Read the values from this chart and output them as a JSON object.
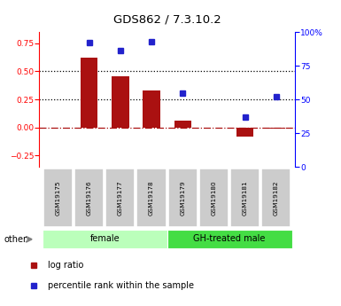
{
  "title": "GDS862 / 7.3.10.2",
  "samples": [
    "GSM19175",
    "GSM19176",
    "GSM19177",
    "GSM19178",
    "GSM19179",
    "GSM19180",
    "GSM19181",
    "GSM19182"
  ],
  "log_ratio": [
    0.0,
    0.62,
    0.46,
    0.33,
    0.06,
    0.0,
    -0.08,
    -0.01
  ],
  "percentile_rank": [
    null,
    92,
    86,
    93,
    55,
    null,
    37,
    52
  ],
  "groups": [
    {
      "label": "female",
      "start": 0,
      "end": 4,
      "color": "#bbffbb"
    },
    {
      "label": "GH-treated male",
      "start": 4,
      "end": 8,
      "color": "#44dd44"
    }
  ],
  "left_ylim": [
    -0.35,
    0.85
  ],
  "right_ylim": [
    0,
    100
  ],
  "left_yticks": [
    -0.25,
    0.0,
    0.25,
    0.5,
    0.75
  ],
  "right_yticks": [
    0,
    25,
    50,
    75,
    100
  ],
  "hlines_dotted": [
    0.25,
    0.5
  ],
  "hline_dashdot_val": 0.0,
  "bar_color": "#aa1111",
  "dot_color": "#2222cc",
  "bar_width": 0.55,
  "legend_log_ratio": "log ratio",
  "legend_percentile": "percentile rank within the sample",
  "other_label": "other"
}
